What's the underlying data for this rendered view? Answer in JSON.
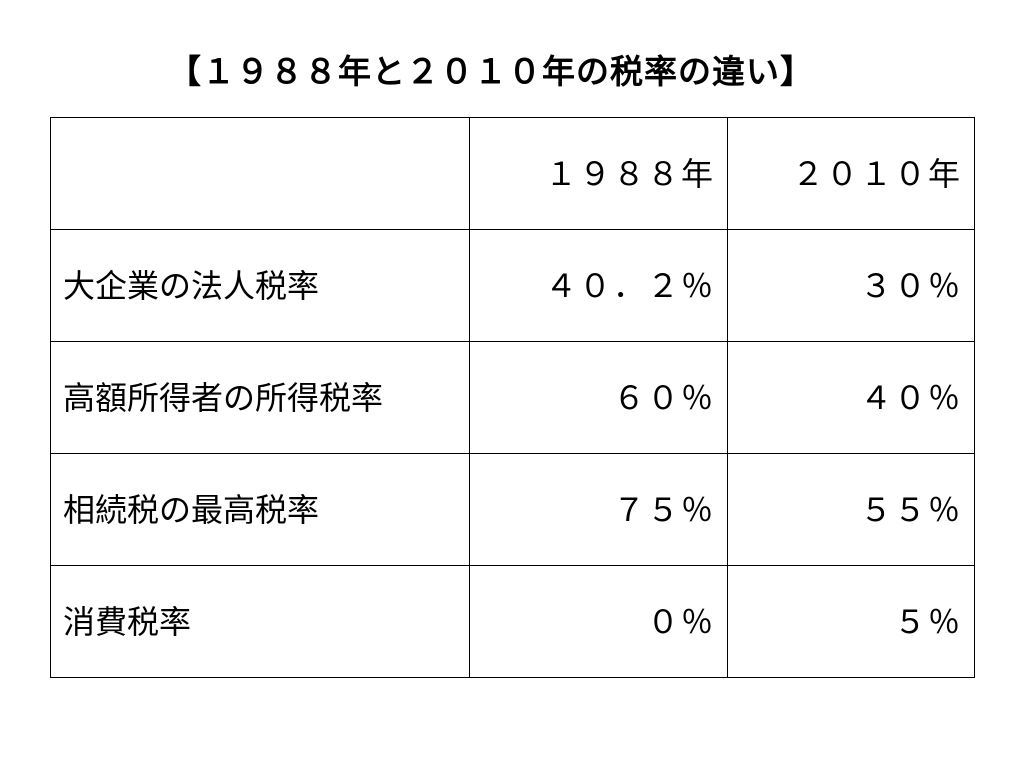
{
  "title": "【１９８８年と２０１０年の税率の違い】",
  "table": {
    "headers": [
      "",
      "１９８８年",
      "２０１０年"
    ],
    "rows": [
      {
        "label": "大企業の法人税率",
        "v1988": "４０．２％",
        "v2010": "３０％"
      },
      {
        "label": "高額所得者の所得税率",
        "v1988": "６０％",
        "v2010": "４０％"
      },
      {
        "label": "相続税の最高税率",
        "v1988": "７５％",
        "v2010": "５５％"
      },
      {
        "label": "消費税率",
        "v1988": "０％",
        "v2010": "５％"
      }
    ]
  }
}
